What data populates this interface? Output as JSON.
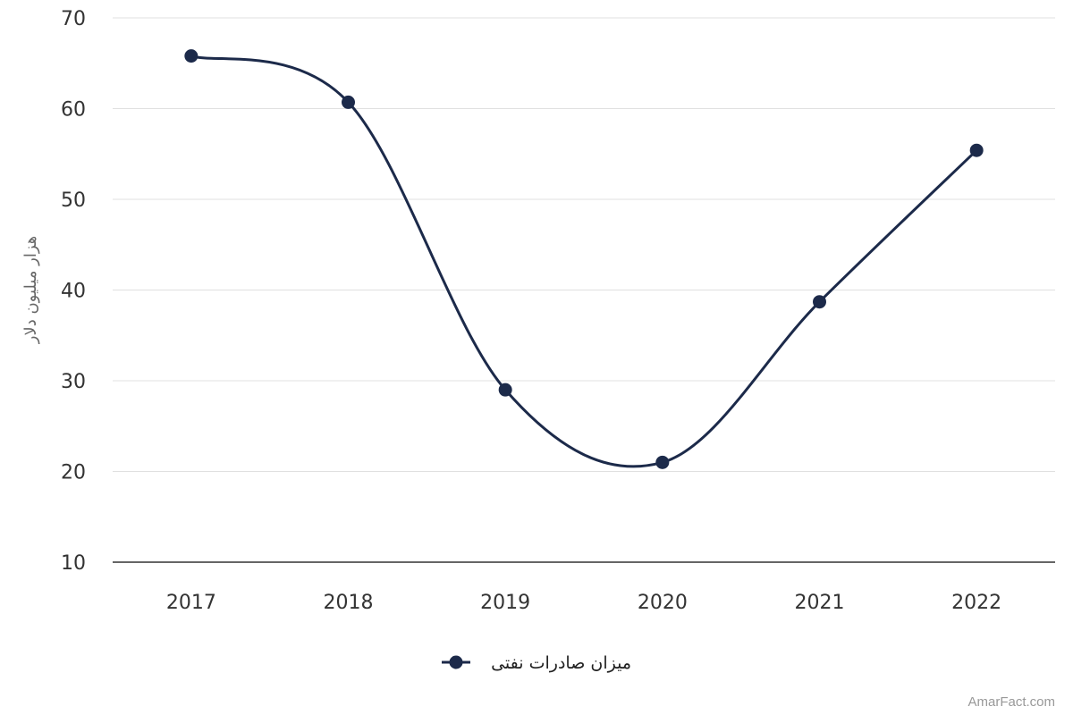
{
  "chart_data": {
    "type": "line",
    "categories": [
      "2017",
      "2018",
      "2019",
      "2020",
      "2021",
      "2022"
    ],
    "series": [
      {
        "name": "میزان صادرات نفتی",
        "values": [
          65.8,
          60.7,
          29.0,
          21.0,
          38.7,
          55.4
        ]
      }
    ],
    "ylabel": "هزار میلیون دلار",
    "xlabel": "",
    "ylim": [
      10,
      70
    ],
    "yticks": [
      10,
      20,
      30,
      40,
      50,
      60,
      70
    ],
    "grid": true,
    "smooth": true,
    "legend": "bottom-center"
  },
  "colors": {
    "series": "#1c2a4a",
    "grid": "#e0e0e0",
    "axis": "#333333"
  },
  "credit": "AmarFact.com"
}
